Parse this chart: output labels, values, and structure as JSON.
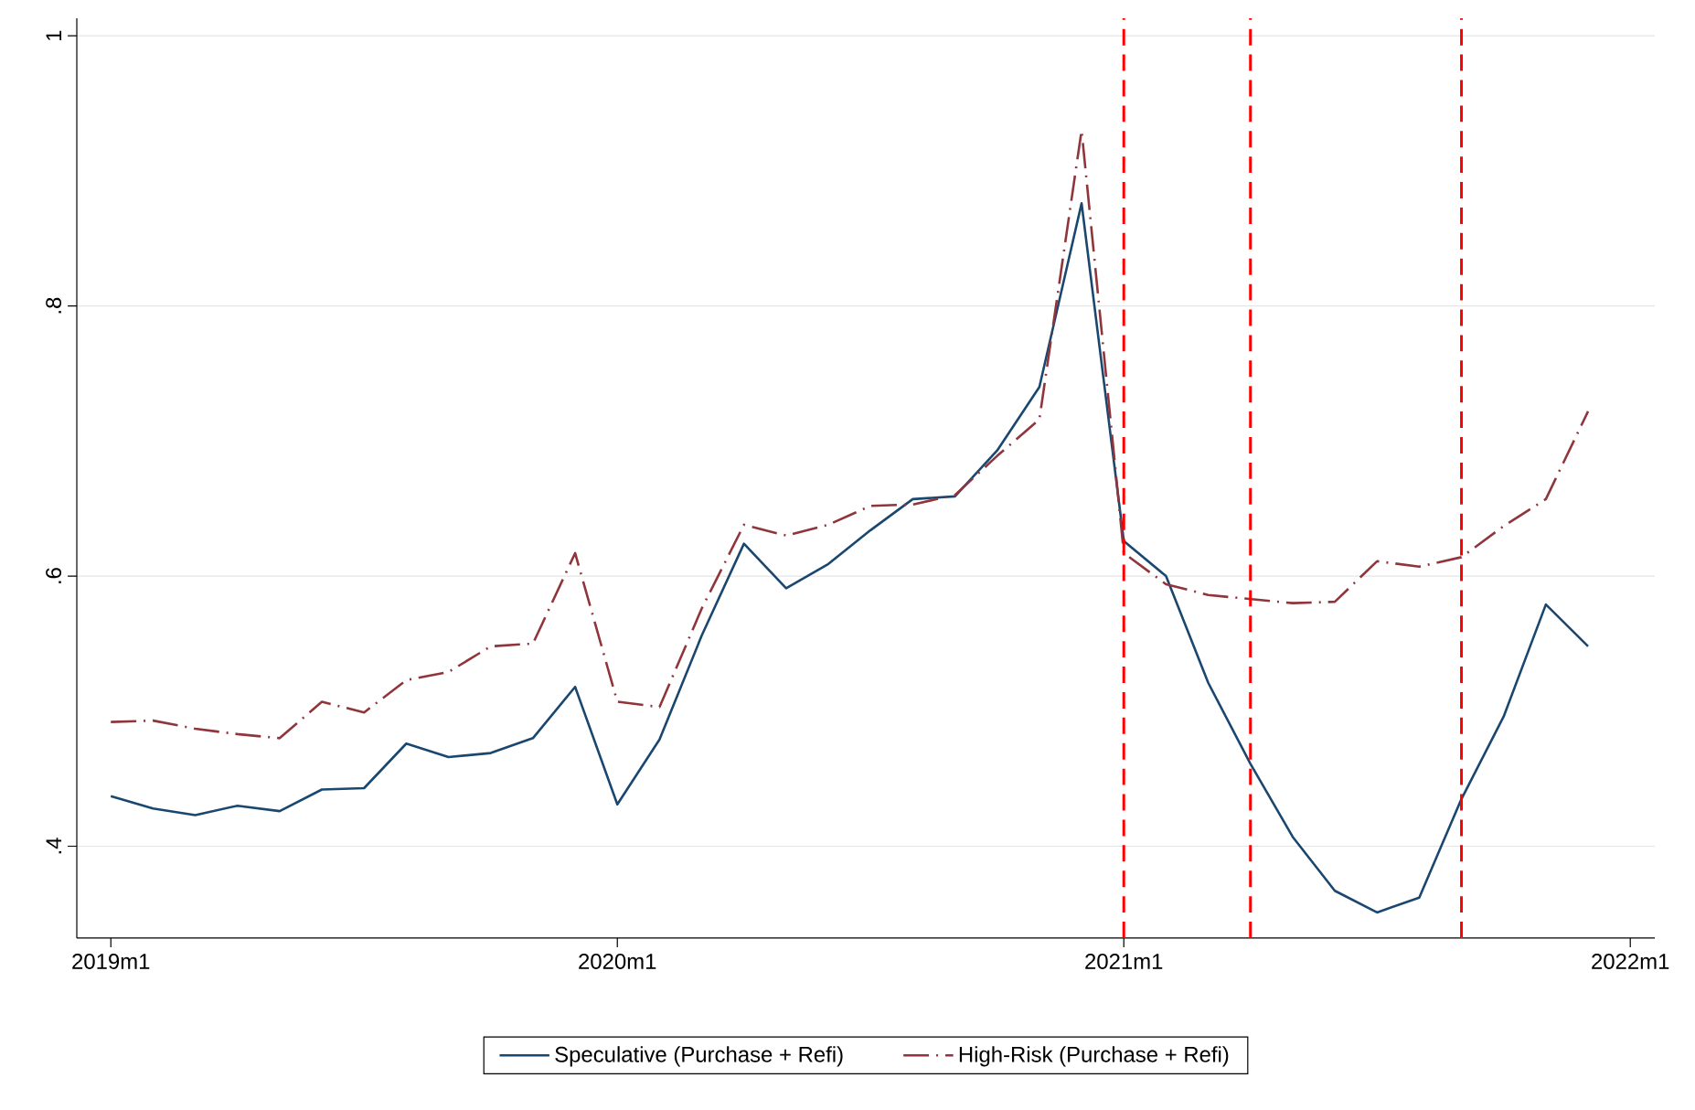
{
  "chart_data": {
    "type": "line",
    "x": [
      "2019-01",
      "2019-02",
      "2019-03",
      "2019-04",
      "2019-05",
      "2019-06",
      "2019-07",
      "2019-08",
      "2019-09",
      "2019-10",
      "2019-11",
      "2019-12",
      "2020-01",
      "2020-02",
      "2020-03",
      "2020-04",
      "2020-05",
      "2020-06",
      "2020-07",
      "2020-08",
      "2020-09",
      "2020-10",
      "2020-11",
      "2020-12",
      "2021-01",
      "2021-02",
      "2021-03",
      "2021-04",
      "2021-05",
      "2021-06",
      "2021-07",
      "2021-08",
      "2021-09",
      "2021-10",
      "2021-11",
      "2021-12"
    ],
    "series": [
      {
        "name": "Speculative (Purchase + Refi)",
        "color": "#1a476f",
        "line_style": "solid",
        "values": [
          0.437,
          0.428,
          0.423,
          0.43,
          0.426,
          0.442,
          0.443,
          0.476,
          0.466,
          0.469,
          0.48,
          0.518,
          0.431,
          0.479,
          0.556,
          0.624,
          0.591,
          0.609,
          0.634,
          0.657,
          0.659,
          0.693,
          0.74,
          0.876,
          0.626,
          0.6,
          0.521,
          0.461,
          0.407,
          0.367,
          0.351,
          0.362,
          0.435,
          0.496,
          0.579,
          0.548
        ]
      },
      {
        "name": "High-Risk (Purchase + Refi)",
        "color": "#90353b",
        "line_style": "dashdot",
        "values": [
          0.492,
          0.493,
          0.487,
          0.483,
          0.48,
          0.507,
          0.499,
          0.523,
          0.529,
          0.548,
          0.55,
          0.617,
          0.507,
          0.503,
          0.576,
          0.638,
          0.63,
          0.638,
          0.652,
          0.653,
          0.66,
          0.689,
          0.716,
          0.93,
          0.617,
          0.594,
          0.586,
          0.583,
          0.58,
          0.581,
          0.611,
          0.607,
          0.614,
          0.637,
          0.657,
          0.722
        ]
      }
    ],
    "xlim": [
      "2018-12-07",
      "2022-01-19"
    ],
    "xticks": [
      {
        "value": "2019-01",
        "label": "2019m1"
      },
      {
        "value": "2020-01",
        "label": "2020m1"
      },
      {
        "value": "2021-01",
        "label": "2021m1"
      },
      {
        "value": "2022-01",
        "label": "2022m1"
      }
    ],
    "ylim": [
      0.332,
      1.013
    ],
    "yticks": [
      {
        "value": 0.4,
        "label": ".4"
      },
      {
        "value": 0.6,
        "label": ".6"
      },
      {
        "value": 0.8,
        "label": ".8"
      },
      {
        "value": 1,
        "label": "1"
      }
    ],
    "ref_lines": [
      {
        "axis": "x",
        "value": "2021-01",
        "color": "#ff0000",
        "line_style": "dashed"
      },
      {
        "axis": "x",
        "value": "2021-04",
        "color": "#ff0000",
        "line_style": "dashed"
      },
      {
        "axis": "x",
        "value": "2021-09",
        "color": "#ff0000",
        "line_style": "dashed"
      }
    ],
    "grid": "y",
    "legend": "bottom"
  }
}
